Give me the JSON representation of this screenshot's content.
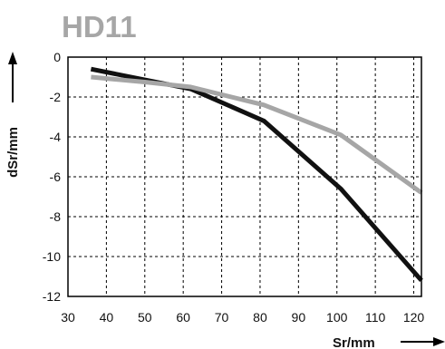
{
  "chart_data": {
    "type": "line",
    "title": "HD11",
    "xlabel": "Sr/mm",
    "ylabel": "dSr/mm",
    "xlim": [
      30,
      122
    ],
    "ylim": [
      -12,
      0
    ],
    "x_ticks": [
      30,
      40,
      50,
      60,
      70,
      80,
      90,
      100,
      110,
      120
    ],
    "y_ticks": [
      0,
      -2,
      -4,
      -6,
      -8,
      -10,
      -12
    ],
    "grid": true,
    "series": [
      {
        "color": "#111111",
        "points": [
          [
            36,
            -0.6
          ],
          [
            62,
            -1.6
          ],
          [
            81,
            -3.2
          ],
          [
            101,
            -6.6
          ],
          [
            122,
            -11.2
          ]
        ]
      },
      {
        "color": "#a6a6a6",
        "points": [
          [
            36,
            -1.0
          ],
          [
            50,
            -1.25
          ],
          [
            62,
            -1.5
          ],
          [
            81,
            -2.4
          ],
          [
            101,
            -3.9
          ],
          [
            122,
            -6.8
          ]
        ]
      }
    ]
  }
}
